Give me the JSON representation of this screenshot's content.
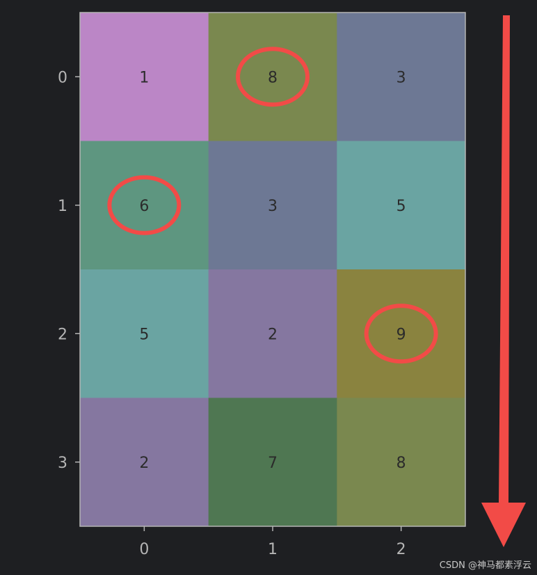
{
  "chart_data": {
    "type": "heatmap",
    "rows": [
      "0",
      "1",
      "2",
      "3"
    ],
    "columns": [
      "0",
      "1",
      "2"
    ],
    "values": [
      [
        1,
        8,
        3
      ],
      [
        6,
        3,
        5
      ],
      [
        5,
        2,
        9
      ],
      [
        2,
        7,
        8
      ]
    ],
    "value_colors": {
      "1": "#bb86c6",
      "2": "#8577a0",
      "3": "#6d7894",
      "5": "#6aa4a2",
      "6": "#5e9680",
      "7": "#4f7752",
      "8": "#7a884f",
      "9": "#8a833f"
    },
    "x_ticks": [
      "0",
      "1",
      "2"
    ],
    "y_ticks": [
      "0",
      "1",
      "2",
      "3"
    ],
    "highlighted_cells": [
      [
        0,
        1
      ],
      [
        1,
        0
      ],
      [
        2,
        2
      ]
    ],
    "annotation_color": "#f24b47",
    "text_color": "#2b2b2b",
    "axis_color": "#b5b5b5",
    "background": "#1e1f22"
  },
  "watermark": "CSDN @神马都素浮云"
}
